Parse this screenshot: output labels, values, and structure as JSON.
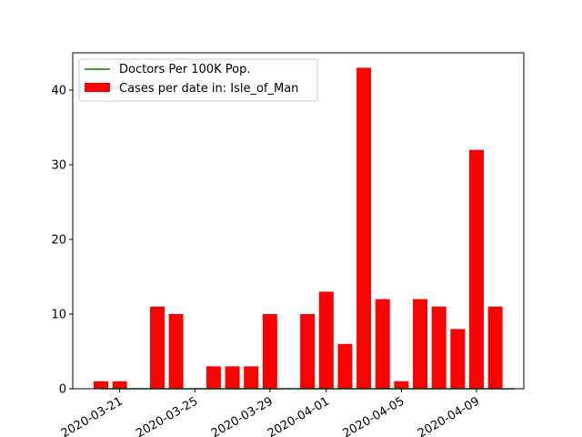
{
  "chart_data": {
    "type": "bar",
    "x": [
      "2020-03-20",
      "2020-03-21",
      "2020-03-22",
      "2020-03-23",
      "2020-03-24",
      "2020-03-25",
      "2020-03-26",
      "2020-03-27",
      "2020-03-28",
      "2020-03-29",
      "2020-03-30",
      "2020-03-31",
      "2020-04-01",
      "2020-04-02",
      "2020-04-03",
      "2020-04-04",
      "2020-04-05",
      "2020-04-06",
      "2020-04-07",
      "2020-04-08",
      "2020-04-09",
      "2020-04-10",
      "2020-04-11"
    ],
    "series": [
      {
        "name": "Cases per date in: Isle_of_Man",
        "type": "bar",
        "color": "#ff0000",
        "values": [
          1,
          1,
          0,
          11,
          10,
          0,
          3,
          3,
          3,
          10,
          0,
          10,
          13,
          6,
          43,
          12,
          1,
          12,
          11,
          8,
          32,
          11,
          0
        ]
      },
      {
        "name": "Doctors Per 100K Pop.",
        "type": "line",
        "color": "#008000",
        "values": [
          0,
          0,
          0,
          0,
          0,
          0,
          0,
          0,
          0,
          0,
          0,
          0,
          0,
          0,
          0,
          0,
          0,
          0,
          0,
          0,
          0,
          0,
          0
        ]
      }
    ],
    "xticks": [
      "2020-03-21",
      "2020-03-25",
      "2020-03-29",
      "2020-04-01",
      "2020-04-05",
      "2020-04-09"
    ],
    "yticks": [
      0,
      10,
      20,
      30,
      40
    ],
    "ylim": [
      0,
      45
    ],
    "title": "",
    "xlabel": "",
    "ylabel": "",
    "legend": "top-left",
    "grid": false
  }
}
